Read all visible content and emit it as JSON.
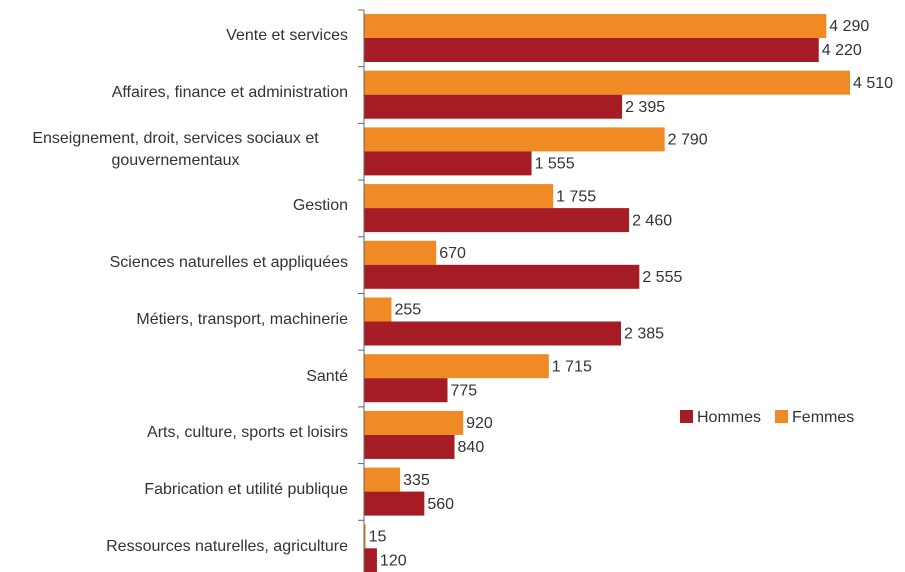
{
  "chart_data": {
    "type": "bar",
    "orientation": "horizontal",
    "categories": [
      "Vente et services",
      "Affaires, finance et administration",
      "Enseignement, droit, services sociaux et gouvernementaux",
      "Gestion",
      "Sciences naturelles et appliquées",
      "Métiers, transport, machinerie",
      "Santé",
      "Arts, culture, sports et loisirs",
      "Fabrication et utilité publique",
      "Ressources naturelles, agriculture"
    ],
    "series": [
      {
        "name": "Hommes",
        "color": "#a51c24",
        "values": [
          4220,
          2395,
          1555,
          2460,
          2555,
          2385,
          775,
          840,
          560,
          120
        ],
        "value_labels": [
          "4 220",
          "2 395",
          "1 555",
          "2 460",
          "2 555",
          "2 385",
          "775",
          "840",
          "560",
          "120"
        ]
      },
      {
        "name": "Femmes",
        "color": "#f08a24",
        "values": [
          4290,
          4510,
          2790,
          1755,
          670,
          255,
          1715,
          920,
          335,
          15
        ],
        "value_labels": [
          "4 290",
          "4 510",
          "2 790",
          "1 755",
          "670",
          "255",
          "1 715",
          "920",
          "335",
          "15"
        ]
      }
    ],
    "legend": "right"
  }
}
